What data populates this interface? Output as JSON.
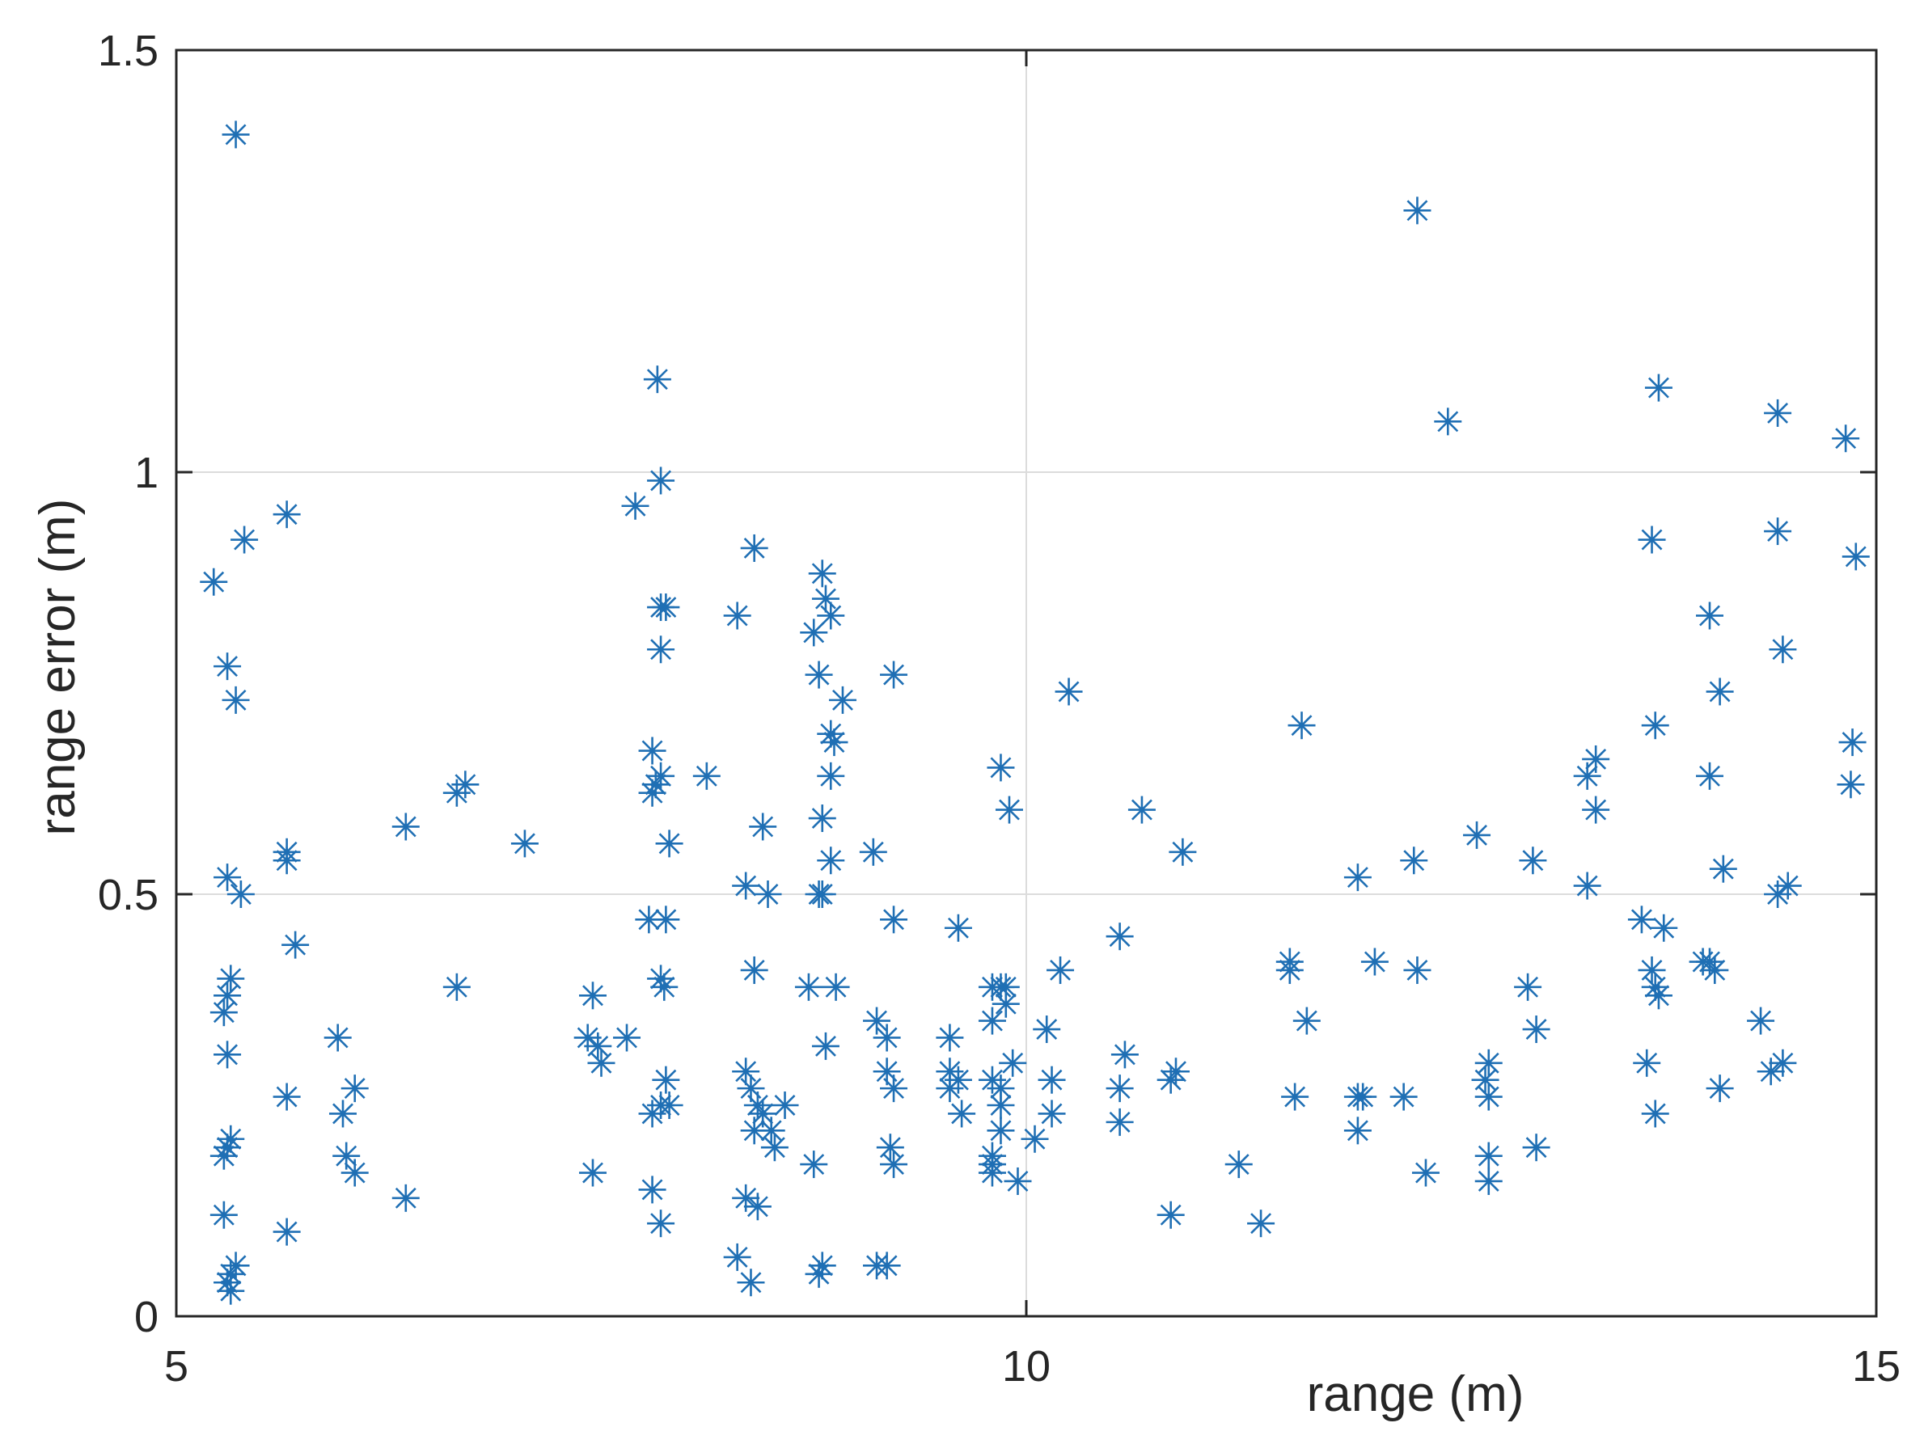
{
  "chart_data": {
    "type": "scatter",
    "xlabel": "range (m)",
    "ylabel": "range error (m)",
    "xlim": [
      5,
      15
    ],
    "ylim": [
      0,
      1.5
    ],
    "xticks": [
      5,
      10,
      15
    ],
    "yticks": [
      0,
      0.5,
      1,
      1.5
    ],
    "xtick_labels": [
      "5",
      "10",
      "15"
    ],
    "ytick_labels": [
      "0",
      "0.5",
      "1",
      "1.5"
    ],
    "grid": true,
    "marker": "asterisk",
    "color": "#1f6fb4",
    "points": [
      [
        5.35,
        1.4
      ],
      [
        5.22,
        0.87
      ],
      [
        5.3,
        0.77
      ],
      [
        5.35,
        0.73
      ],
      [
        5.4,
        0.92
      ],
      [
        5.65,
        0.95
      ],
      [
        5.3,
        0.52
      ],
      [
        5.38,
        0.5
      ],
      [
        5.65,
        0.55
      ],
      [
        5.65,
        0.54
      ],
      [
        5.7,
        0.44
      ],
      [
        5.32,
        0.4
      ],
      [
        5.3,
        0.38
      ],
      [
        5.28,
        0.36
      ],
      [
        5.3,
        0.31
      ],
      [
        5.65,
        0.26
      ],
      [
        5.32,
        0.21
      ],
      [
        5.3,
        0.2
      ],
      [
        5.28,
        0.19
      ],
      [
        5.28,
        0.12
      ],
      [
        5.65,
        0.1
      ],
      [
        5.35,
        0.06
      ],
      [
        5.32,
        0.05
      ],
      [
        5.3,
        0.04
      ],
      [
        5.32,
        0.03
      ],
      [
        6.35,
        0.58
      ],
      [
        6.65,
        0.62
      ],
      [
        6.7,
        0.63
      ],
      [
        7.05,
        0.56
      ],
      [
        6.65,
        0.39
      ],
      [
        5.95,
        0.33
      ],
      [
        6.05,
        0.27
      ],
      [
        5.98,
        0.24
      ],
      [
        6.0,
        0.19
      ],
      [
        6.05,
        0.17
      ],
      [
        6.35,
        0.14
      ],
      [
        7.7,
        0.96
      ],
      [
        7.8,
        0.67
      ],
      [
        7.82,
        0.63
      ],
      [
        7.85,
        0.64
      ],
      [
        7.8,
        0.62
      ],
      [
        7.85,
        0.79
      ],
      [
        7.85,
        0.84
      ],
      [
        7.88,
        0.84
      ],
      [
        7.78,
        0.47
      ],
      [
        7.88,
        0.47
      ],
      [
        7.85,
        0.4
      ],
      [
        7.87,
        0.39
      ],
      [
        7.9,
        0.56
      ],
      [
        7.83,
        1.11
      ],
      [
        7.85,
        0.99
      ],
      [
        7.45,
        0.38
      ],
      [
        7.42,
        0.33
      ],
      [
        7.48,
        0.32
      ],
      [
        7.5,
        0.3
      ],
      [
        7.65,
        0.33
      ],
      [
        7.8,
        0.24
      ],
      [
        7.85,
        0.25
      ],
      [
        7.9,
        0.25
      ],
      [
        7.88,
        0.28
      ],
      [
        7.45,
        0.17
      ],
      [
        7.8,
        0.15
      ],
      [
        7.85,
        0.11
      ],
      [
        8.3,
        0.83
      ],
      [
        8.12,
        0.64
      ],
      [
        8.4,
        0.91
      ],
      [
        8.45,
        0.58
      ],
      [
        8.35,
        0.51
      ],
      [
        8.48,
        0.5
      ],
      [
        8.4,
        0.41
      ],
      [
        8.35,
        0.29
      ],
      [
        8.38,
        0.27
      ],
      [
        8.42,
        0.25
      ],
      [
        8.45,
        0.24
      ],
      [
        8.4,
        0.22
      ],
      [
        8.5,
        0.22
      ],
      [
        8.52,
        0.2
      ],
      [
        8.58,
        0.25
      ],
      [
        8.35,
        0.14
      ],
      [
        8.42,
        0.13
      ],
      [
        8.3,
        0.07
      ],
      [
        8.38,
        0.04
      ],
      [
        8.8,
        0.88
      ],
      [
        8.82,
        0.85
      ],
      [
        8.85,
        0.83
      ],
      [
        8.75,
        0.81
      ],
      [
        8.78,
        0.76
      ],
      [
        8.92,
        0.73
      ],
      [
        8.85,
        0.69
      ],
      [
        8.87,
        0.68
      ],
      [
        8.85,
        0.64
      ],
      [
        8.8,
        0.59
      ],
      [
        8.85,
        0.54
      ],
      [
        8.8,
        0.5
      ],
      [
        8.78,
        0.5
      ],
      [
        8.72,
        0.39
      ],
      [
        8.88,
        0.39
      ],
      [
        8.82,
        0.32
      ],
      [
        8.75,
        0.18
      ],
      [
        8.8,
        0.06
      ],
      [
        8.78,
        0.05
      ],
      [
        9.22,
        0.76
      ],
      [
        9.1,
        0.55
      ],
      [
        9.22,
        0.47
      ],
      [
        9.12,
        0.35
      ],
      [
        9.18,
        0.33
      ],
      [
        9.18,
        0.29
      ],
      [
        9.22,
        0.27
      ],
      [
        9.2,
        0.2
      ],
      [
        9.22,
        0.18
      ],
      [
        9.12,
        0.06
      ],
      [
        9.18,
        0.06
      ],
      [
        9.6,
        0.46
      ],
      [
        9.55,
        0.33
      ],
      [
        9.55,
        0.29
      ],
      [
        9.6,
        0.28
      ],
      [
        9.55,
        0.27
      ],
      [
        9.62,
        0.24
      ],
      [
        10.25,
        0.74
      ],
      [
        9.85,
        0.65
      ],
      [
        9.9,
        0.6
      ],
      [
        9.8,
        0.39
      ],
      [
        9.85,
        0.39
      ],
      [
        9.8,
        0.35
      ],
      [
        9.8,
        0.28
      ],
      [
        9.85,
        0.27
      ],
      [
        9.85,
        0.25
      ],
      [
        9.8,
        0.18
      ],
      [
        9.95,
        0.16
      ],
      [
        10.2,
        0.41
      ],
      [
        10.12,
        0.34
      ],
      [
        10.15,
        0.28
      ],
      [
        10.15,
        0.24
      ],
      [
        9.88,
        0.39
      ],
      [
        9.88,
        0.37
      ],
      [
        9.92,
        0.3
      ],
      [
        9.85,
        0.22
      ],
      [
        9.8,
        0.19
      ],
      [
        9.8,
        0.17
      ],
      [
        10.05,
        0.21
      ],
      [
        10.55,
        0.45
      ],
      [
        10.68,
        0.6
      ],
      [
        10.92,
        0.55
      ],
      [
        10.58,
        0.31
      ],
      [
        10.55,
        0.27
      ],
      [
        10.55,
        0.23
      ],
      [
        10.85,
        0.28
      ],
      [
        10.88,
        0.29
      ],
      [
        10.85,
        0.12
      ],
      [
        11.25,
        0.18
      ],
      [
        11.38,
        0.11
      ],
      [
        11.62,
        0.7
      ],
      [
        11.55,
        0.42
      ],
      [
        11.55,
        0.41
      ],
      [
        11.58,
        0.26
      ],
      [
        11.65,
        0.35
      ],
      [
        11.95,
        0.52
      ],
      [
        12.05,
        0.42
      ],
      [
        11.98,
        0.26
      ],
      [
        11.95,
        0.26
      ],
      [
        11.95,
        0.22
      ],
      [
        12.3,
        1.31
      ],
      [
        12.28,
        0.54
      ],
      [
        12.3,
        0.41
      ],
      [
        12.22,
        0.26
      ],
      [
        12.35,
        0.17
      ],
      [
        12.48,
        1.06
      ],
      [
        12.65,
        0.57
      ],
      [
        12.72,
        0.3
      ],
      [
        12.7,
        0.28
      ],
      [
        12.72,
        0.26
      ],
      [
        12.72,
        0.19
      ],
      [
        12.72,
        0.16
      ],
      [
        12.98,
        0.54
      ],
      [
        12.95,
        0.39
      ],
      [
        13.0,
        0.34
      ],
      [
        13.0,
        0.2
      ],
      [
        13.35,
        0.66
      ],
      [
        13.3,
        0.64
      ],
      [
        13.35,
        0.6
      ],
      [
        13.3,
        0.51
      ],
      [
        13.72,
        1.1
      ],
      [
        13.68,
        0.92
      ],
      [
        13.7,
        0.7
      ],
      [
        13.68,
        0.41
      ],
      [
        13.7,
        0.39
      ],
      [
        13.72,
        0.38
      ],
      [
        13.62,
        0.47
      ],
      [
        13.75,
        0.46
      ],
      [
        13.65,
        0.3
      ],
      [
        13.7,
        0.24
      ],
      [
        14.02,
        0.83
      ],
      [
        14.08,
        0.74
      ],
      [
        14.02,
        0.64
      ],
      [
        14.1,
        0.53
      ],
      [
        13.98,
        0.42
      ],
      [
        14.02,
        0.42
      ],
      [
        14.05,
        0.41
      ],
      [
        14.08,
        0.27
      ],
      [
        14.42,
        1.07
      ],
      [
        14.42,
        0.93
      ],
      [
        14.45,
        0.79
      ],
      [
        14.42,
        0.5
      ],
      [
        14.48,
        0.51
      ],
      [
        14.32,
        0.35
      ],
      [
        14.38,
        0.29
      ],
      [
        14.45,
        0.3
      ],
      [
        14.82,
        1.04
      ],
      [
        14.88,
        0.9
      ],
      [
        14.86,
        0.68
      ],
      [
        14.85,
        0.63
      ]
    ]
  }
}
